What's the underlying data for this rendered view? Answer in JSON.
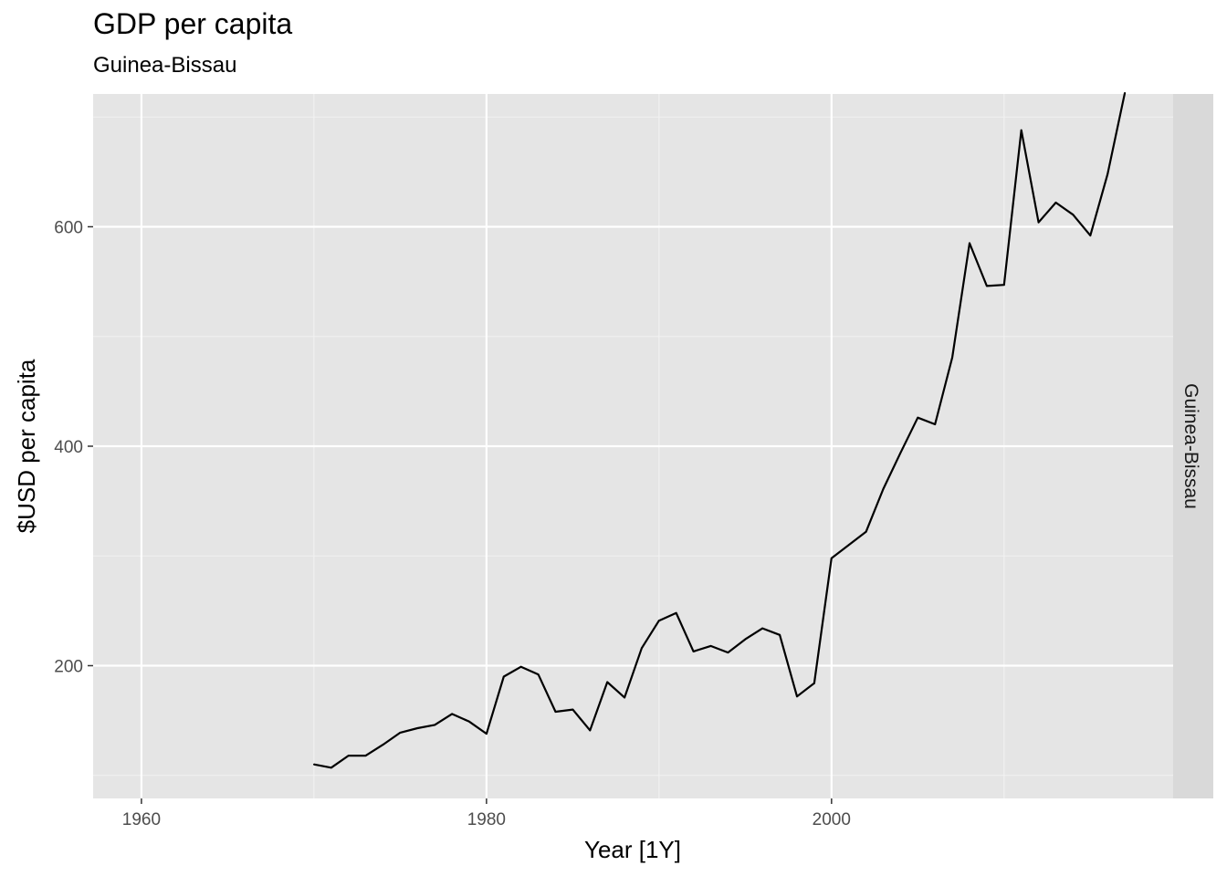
{
  "chart_data": {
    "type": "line",
    "title": "GDP per capita",
    "subtitle": "Guinea-Bissau",
    "xlabel": "Year [1Y]",
    "ylabel": "$USD per capita",
    "facet_label": "Guinea-Bissau",
    "xlim": [
      1957.2,
      2019.8
    ],
    "ylim": [
      79,
      721
    ],
    "x_major_ticks": [
      1960,
      1980,
      2000
    ],
    "x_minor_ticks": [
      1970,
      1990,
      2010
    ],
    "y_major_ticks": [
      200,
      400,
      600
    ],
    "y_minor_ticks": [
      100,
      300,
      500,
      700
    ],
    "grid": true,
    "series": [
      {
        "x": [
          1970,
          1971,
          1972,
          1973,
          1974,
          1975,
          1976,
          1977,
          1978,
          1979,
          1980,
          1981,
          1982,
          1983,
          1984,
          1985,
          1986,
          1987,
          1988,
          1989,
          1990,
          1991,
          1992,
          1993,
          1994,
          1995,
          1996,
          1997,
          1998,
          1999,
          2000,
          2001,
          2002,
          2003,
          2004,
          2005,
          2006,
          2007,
          2008,
          2009,
          2010,
          2011,
          2012,
          2013,
          2014,
          2015,
          2016,
          2017
        ],
        "values": [
          110,
          107,
          118,
          118,
          128,
          139,
          143,
          146,
          156,
          149,
          138,
          190,
          199,
          192,
          158,
          160,
          141,
          185,
          171,
          216,
          241,
          248,
          213,
          218,
          212,
          224,
          234,
          228,
          172,
          184,
          298,
          310,
          322,
          361,
          394,
          426,
          420,
          481,
          585,
          546,
          547,
          688,
          604,
          622,
          611,
          592,
          648,
          722
        ]
      }
    ]
  }
}
